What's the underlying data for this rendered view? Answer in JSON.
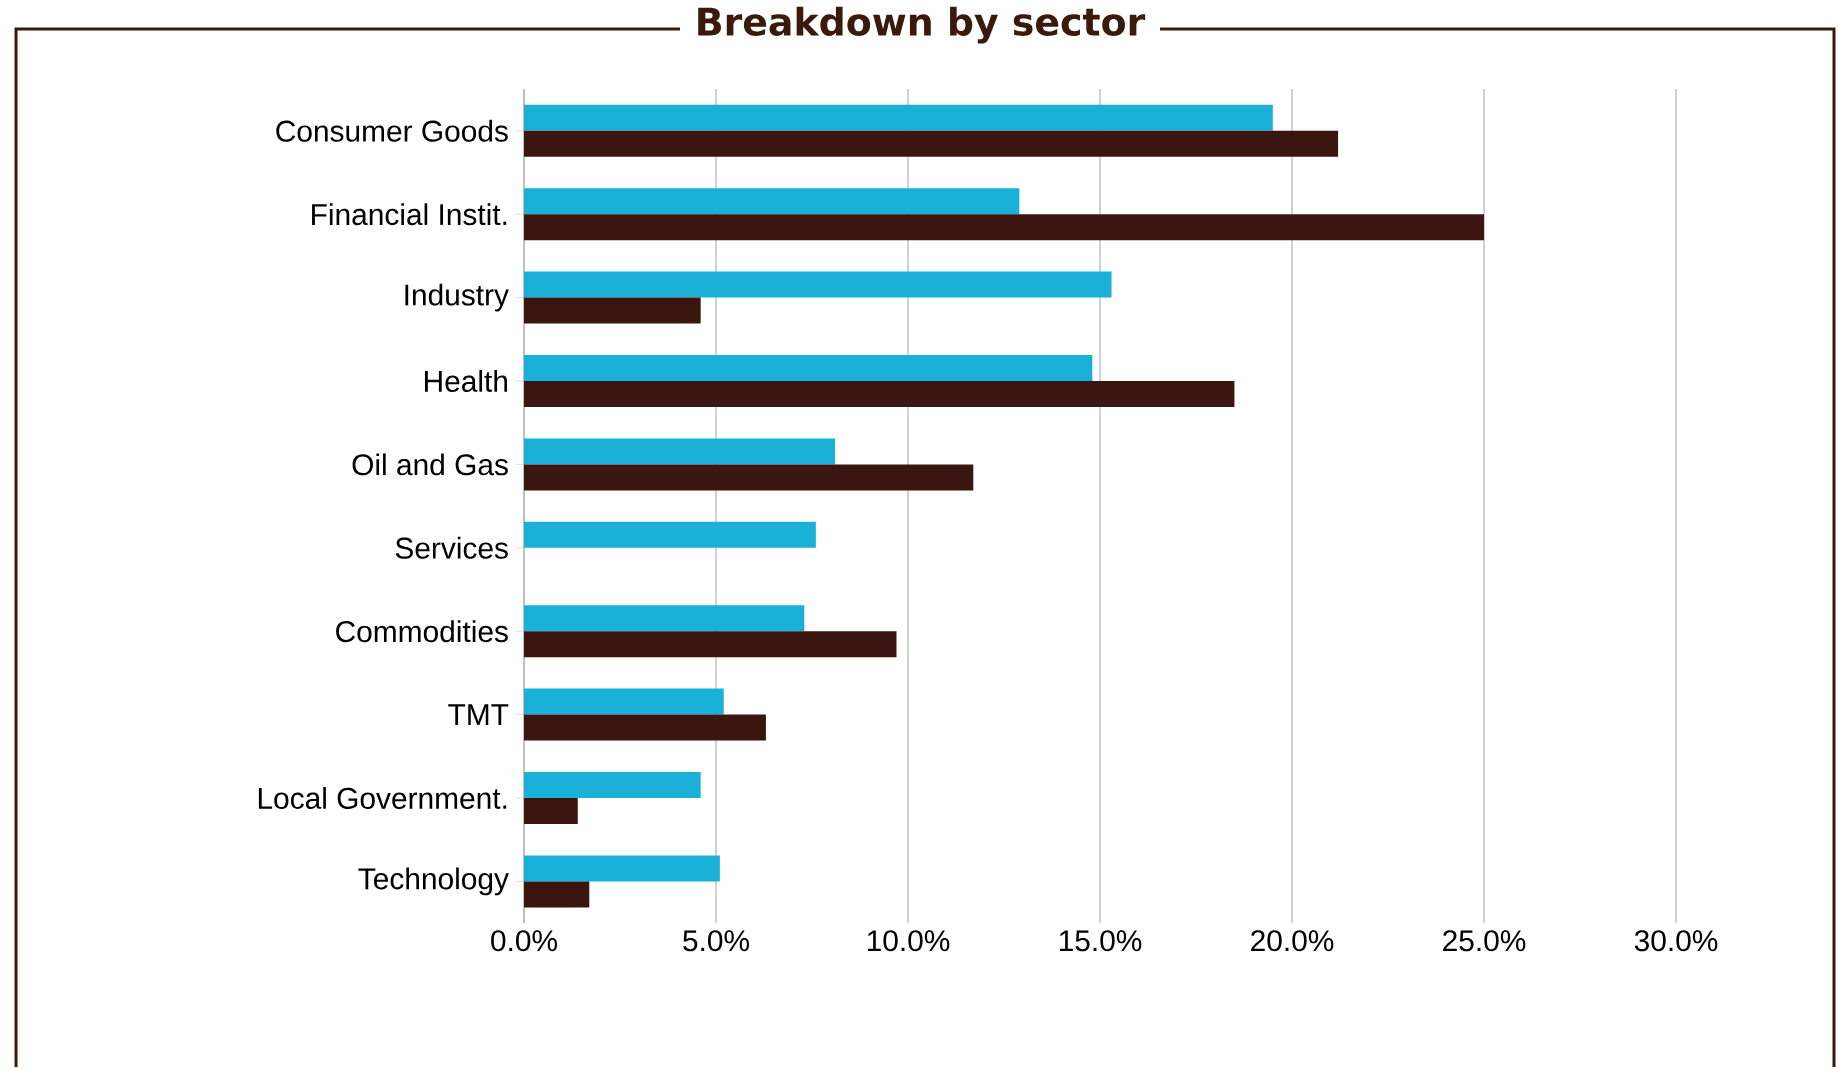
{
  "chart_data": {
    "type": "bar",
    "orientation": "horizontal",
    "title": "Breakdown by sector",
    "categories": [
      "Consumer Goods",
      "Financial Instit.",
      "Industry",
      "Health",
      "Oil and Gas",
      "Services",
      "Commodities",
      "TMT",
      "Local Government.",
      "Technology"
    ],
    "series": [
      {
        "color": "#1ab0d8",
        "values": [
          19.5,
          12.9,
          15.3,
          14.8,
          8.1,
          7.6,
          7.3,
          5.2,
          4.6,
          5.1
        ]
      },
      {
        "color": "#3b1510",
        "values": [
          21.2,
          25.0,
          4.6,
          18.5,
          11.7,
          null,
          9.7,
          6.3,
          1.4,
          1.7
        ]
      }
    ],
    "xlim": [
      0,
      30
    ],
    "xticks": [
      {
        "value": 0,
        "label": "0.0%"
      },
      {
        "value": 5,
        "label": "5.0%"
      },
      {
        "value": 10,
        "label": "10.0%"
      },
      {
        "value": 15,
        "label": "15.0%"
      },
      {
        "value": 20,
        "label": "20.0%"
      },
      {
        "value": 25,
        "label": "25.0%"
      },
      {
        "value": 30,
        "label": "30.0%"
      }
    ],
    "grid": "x"
  }
}
